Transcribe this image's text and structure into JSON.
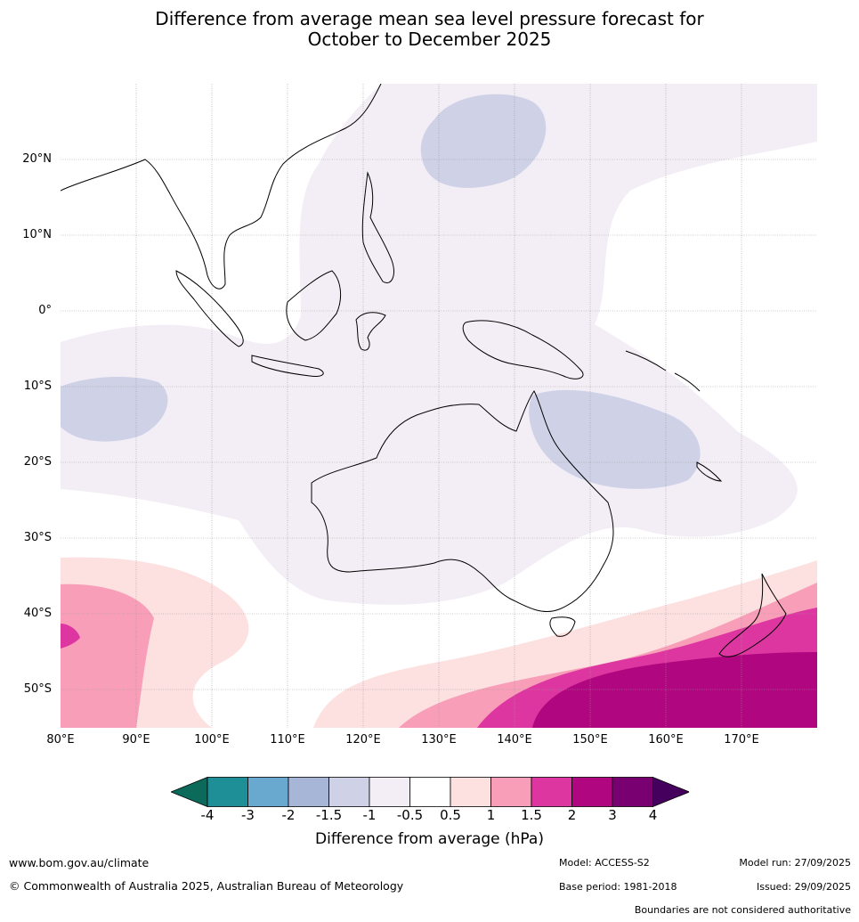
{
  "title": {
    "line1": "Difference from average mean sea level pressure forecast for",
    "line2": "October to December 2025"
  },
  "map": {
    "lat_labels": [
      "20°N",
      "10°N",
      "0°",
      "10°S",
      "20°S",
      "30°S",
      "40°S",
      "50°S"
    ],
    "lon_labels": [
      "80°E",
      "90°E",
      "100°E",
      "110°E",
      "120°E",
      "130°E",
      "140°E",
      "150°E",
      "160°E",
      "170°E"
    ],
    "lat_values": [
      20,
      10,
      0,
      -10,
      -20,
      -30,
      -40,
      -50
    ],
    "lon_values": [
      80,
      90,
      100,
      110,
      120,
      130,
      140,
      150,
      160,
      170
    ],
    "extent": {
      "lon_min": 80,
      "lon_max": 180,
      "lat_min": -55,
      "lat_max": 30
    }
  },
  "colorbar": {
    "ticks": [
      "-4",
      "-3",
      "-2",
      "-1.5",
      "-1",
      "-0.5",
      "0.5",
      "1",
      "1.5",
      "2",
      "3",
      "4"
    ],
    "colors": [
      "#1e8f96",
      "#6aa9cf",
      "#a7b5d6",
      "#cfd1e6",
      "#f3eef6",
      "#ffffff",
      "#fde0e0",
      "#f89eb8",
      "#de36a0",
      "#b0067f",
      "#780070"
    ],
    "under_color": "#0b6a5a",
    "over_color": "#44005c",
    "label": "Difference from average (hPa)"
  },
  "footer": {
    "website": "www.bom.gov.au/climate",
    "copyright": "© Commonwealth of Australia 2025, Australian Bureau of Meteorology",
    "model": "Model: ACCESS-S2",
    "base_period": "Base period: 1981-2018",
    "model_run": "Model run: 27/09/2025",
    "issued": "Issued: 29/09/2025",
    "boundaries": "Boundaries are not considered authoritative"
  }
}
